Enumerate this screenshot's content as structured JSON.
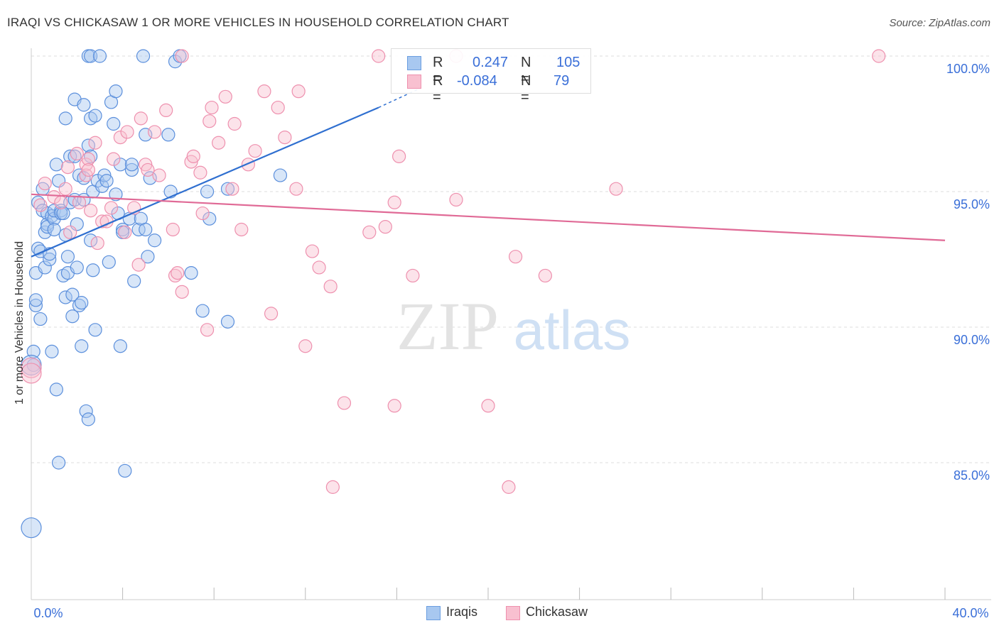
{
  "title": "IRAQI VS CHICKASAW 1 OR MORE VEHICLES IN HOUSEHOLD CORRELATION CHART",
  "source": "Source: ZipAtlas.com",
  "watermark": {
    "zip": "ZIP",
    "atlas": "atlas"
  },
  "legend": {
    "rows": [
      {
        "r_label": "R =",
        "r_value": "0.247",
        "n_label": "N =",
        "n_value": "105",
        "color": "#a8c8f0",
        "stroke": "#6a9ee0"
      },
      {
        "r_label": "R =",
        "r_value": "-0.084",
        "n_label": "N =",
        "n_value": "79",
        "color": "#f8c0d0",
        "stroke": "#ee90ae"
      }
    ]
  },
  "bottom_legend": [
    "Iraqis",
    "Chickasaw"
  ],
  "chart_data": {
    "type": "scatter",
    "title": "IRAQI VS CHICKASAW 1 OR MORE VEHICLES IN HOUSEHOLD CORRELATION CHART",
    "xlabel": "",
    "ylabel": "1 or more Vehicles in Household",
    "xlim": [
      0,
      40
    ],
    "ylim": [
      80.5,
      101.0
    ],
    "x_tick_labels": [
      {
        "value": 0,
        "label": "0.0%"
      },
      {
        "value": 40,
        "label": "40.0%"
      }
    ],
    "y_tick_labels": [
      {
        "value": 100,
        "label": "100.0%"
      },
      {
        "value": 95,
        "label": "95.0%"
      },
      {
        "value": 90,
        "label": "90.0%"
      },
      {
        "value": 85,
        "label": "85.0%"
      }
    ],
    "x_minor_ticks": [
      4,
      8,
      12,
      16,
      20,
      24,
      28,
      32,
      36,
      40
    ],
    "series": [
      {
        "name": "Iraqis",
        "color": "#a8c8f0",
        "stroke": "#5b8fdc",
        "trend_color": "#2f6fd0",
        "trend": {
          "x0": 0,
          "y0": 92.6,
          "x1": 15.2,
          "y1": 98.1,
          "dash_x1": 17.0,
          "dash_y1": 98.8
        },
        "points": [
          [
            0.0,
            82.6
          ],
          [
            0.1,
            88.6
          ],
          [
            0.1,
            89.1
          ],
          [
            0.2,
            92.0
          ],
          [
            0.2,
            90.8
          ],
          [
            0.2,
            91.0
          ],
          [
            0.3,
            94.6
          ],
          [
            0.3,
            92.9
          ],
          [
            0.4,
            90.3
          ],
          [
            0.4,
            92.8
          ],
          [
            0.5,
            95.1
          ],
          [
            0.5,
            94.3
          ],
          [
            0.6,
            93.5
          ],
          [
            0.6,
            92.2
          ],
          [
            0.7,
            94.2
          ],
          [
            0.7,
            93.8
          ],
          [
            0.7,
            93.7
          ],
          [
            0.8,
            92.5
          ],
          [
            0.8,
            92.7
          ],
          [
            0.9,
            94.1
          ],
          [
            0.9,
            89.1
          ],
          [
            1.0,
            94.0
          ],
          [
            1.0,
            93.6
          ],
          [
            1.0,
            94.3
          ],
          [
            1.1,
            96.0
          ],
          [
            1.1,
            87.7
          ],
          [
            1.2,
            95.4
          ],
          [
            1.2,
            85.0
          ],
          [
            1.3,
            94.3
          ],
          [
            1.3,
            94.2
          ],
          [
            1.4,
            94.2
          ],
          [
            1.4,
            91.9
          ],
          [
            1.5,
            97.7
          ],
          [
            1.5,
            93.4
          ],
          [
            1.5,
            91.1
          ],
          [
            1.6,
            92.6
          ],
          [
            1.6,
            92.0
          ],
          [
            1.7,
            96.3
          ],
          [
            1.7,
            94.6
          ],
          [
            1.8,
            90.4
          ],
          [
            1.8,
            91.2
          ],
          [
            1.9,
            98.4
          ],
          [
            1.9,
            96.3
          ],
          [
            1.9,
            94.7
          ],
          [
            2.0,
            93.8
          ],
          [
            2.0,
            92.2
          ],
          [
            2.1,
            95.6
          ],
          [
            2.1,
            90.8
          ],
          [
            2.2,
            90.9
          ],
          [
            2.2,
            89.3
          ],
          [
            2.3,
            98.2
          ],
          [
            2.3,
            95.5
          ],
          [
            2.3,
            94.7
          ],
          [
            2.4,
            86.9
          ],
          [
            2.5,
            96.7
          ],
          [
            2.5,
            86.6
          ],
          [
            2.6,
            97.7
          ],
          [
            2.6,
            96.3
          ],
          [
            2.6,
            93.2
          ],
          [
            2.7,
            95.0
          ],
          [
            2.7,
            92.1
          ],
          [
            2.8,
            89.9
          ],
          [
            2.8,
            97.8
          ],
          [
            2.5,
            100.0
          ],
          [
            2.6,
            100.0
          ],
          [
            2.9,
            95.4
          ],
          [
            3.0,
            100.0
          ],
          [
            3.1,
            95.2
          ],
          [
            3.2,
            95.6
          ],
          [
            3.3,
            95.4
          ],
          [
            3.4,
            92.4
          ],
          [
            3.5,
            98.3
          ],
          [
            3.6,
            97.5
          ],
          [
            3.7,
            98.7
          ],
          [
            3.7,
            94.9
          ],
          [
            3.8,
            94.2
          ],
          [
            3.9,
            96.0
          ],
          [
            3.9,
            89.3
          ],
          [
            4.0,
            93.6
          ],
          [
            4.0,
            93.5
          ],
          [
            4.1,
            84.7
          ],
          [
            4.3,
            94.0
          ],
          [
            4.4,
            95.8
          ],
          [
            4.4,
            96.0
          ],
          [
            4.5,
            91.7
          ],
          [
            4.7,
            93.6
          ],
          [
            4.8,
            94.0
          ],
          [
            4.9,
            100.0
          ],
          [
            5.0,
            93.6
          ],
          [
            5.0,
            97.1
          ],
          [
            5.1,
            92.6
          ],
          [
            5.2,
            95.5
          ],
          [
            5.4,
            93.2
          ],
          [
            6.0,
            97.1
          ],
          [
            6.1,
            95.0
          ],
          [
            6.3,
            99.8
          ],
          [
            6.5,
            100.0
          ],
          [
            7.0,
            92.0
          ],
          [
            7.5,
            90.6
          ],
          [
            7.7,
            95.0
          ],
          [
            7.8,
            94.0
          ],
          [
            8.6,
            95.1
          ],
          [
            8.6,
            90.2
          ],
          [
            10.9,
            95.6
          ],
          [
            0.0,
            88.6
          ]
        ]
      },
      {
        "name": "Chickasaw",
        "color": "#f8c0d0",
        "stroke": "#ee90ae",
        "trend_color": "#e06a96",
        "trend": {
          "x0": 0,
          "y0": 94.9,
          "x1": 40,
          "y1": 93.2
        },
        "points": [
          [
            0.0,
            88.5
          ],
          [
            0.4,
            94.5
          ],
          [
            0.6,
            95.3
          ],
          [
            1.0,
            94.8
          ],
          [
            1.3,
            94.6
          ],
          [
            1.5,
            95.1
          ],
          [
            1.6,
            95.9
          ],
          [
            1.7,
            93.5
          ],
          [
            2.0,
            96.4
          ],
          [
            2.1,
            94.6
          ],
          [
            2.4,
            96.0
          ],
          [
            2.4,
            95.6
          ],
          [
            2.5,
            96.2
          ],
          [
            2.5,
            95.8
          ],
          [
            2.6,
            94.3
          ],
          [
            2.8,
            96.8
          ],
          [
            2.9,
            93.1
          ],
          [
            3.1,
            93.9
          ],
          [
            3.3,
            93.9
          ],
          [
            3.5,
            94.4
          ],
          [
            3.6,
            96.2
          ],
          [
            3.9,
            97.0
          ],
          [
            4.1,
            93.5
          ],
          [
            4.2,
            97.2
          ],
          [
            4.5,
            94.4
          ],
          [
            4.7,
            92.3
          ],
          [
            4.8,
            97.7
          ],
          [
            5.0,
            96.0
          ],
          [
            5.1,
            95.8
          ],
          [
            5.4,
            97.2
          ],
          [
            5.6,
            95.6
          ],
          [
            5.9,
            98.0
          ],
          [
            6.2,
            93.6
          ],
          [
            6.3,
            91.9
          ],
          [
            6.4,
            92.0
          ],
          [
            6.6,
            100.0
          ],
          [
            6.6,
            91.3
          ],
          [
            7.0,
            96.1
          ],
          [
            7.1,
            96.3
          ],
          [
            7.4,
            95.7
          ],
          [
            7.5,
            94.2
          ],
          [
            7.7,
            89.9
          ],
          [
            7.8,
            97.6
          ],
          [
            7.9,
            98.1
          ],
          [
            8.2,
            96.8
          ],
          [
            8.5,
            98.5
          ],
          [
            8.8,
            95.1
          ],
          [
            8.9,
            97.5
          ],
          [
            9.2,
            93.6
          ],
          [
            9.5,
            96.0
          ],
          [
            9.8,
            96.5
          ],
          [
            10.2,
            98.7
          ],
          [
            10.5,
            90.5
          ],
          [
            10.8,
            98.1
          ],
          [
            11.1,
            97.0
          ],
          [
            11.6,
            95.1
          ],
          [
            11.7,
            98.7
          ],
          [
            12.0,
            89.3
          ],
          [
            12.3,
            92.8
          ],
          [
            12.6,
            92.2
          ],
          [
            13.2,
            84.1
          ],
          [
            13.1,
            91.5
          ],
          [
            13.7,
            87.2
          ],
          [
            14.8,
            93.5
          ],
          [
            15.2,
            100.0
          ],
          [
            15.5,
            93.7
          ],
          [
            15.9,
            94.6
          ],
          [
            15.9,
            87.1
          ],
          [
            16.1,
            96.3
          ],
          [
            16.7,
            91.9
          ],
          [
            18.6,
            100.0
          ],
          [
            18.6,
            94.7
          ],
          [
            20.0,
            87.1
          ],
          [
            20.9,
            84.1
          ],
          [
            21.2,
            92.6
          ],
          [
            22.5,
            91.9
          ],
          [
            25.6,
            95.1
          ],
          [
            37.1,
            100.0
          ],
          [
            0.0,
            88.3
          ]
        ]
      }
    ]
  }
}
